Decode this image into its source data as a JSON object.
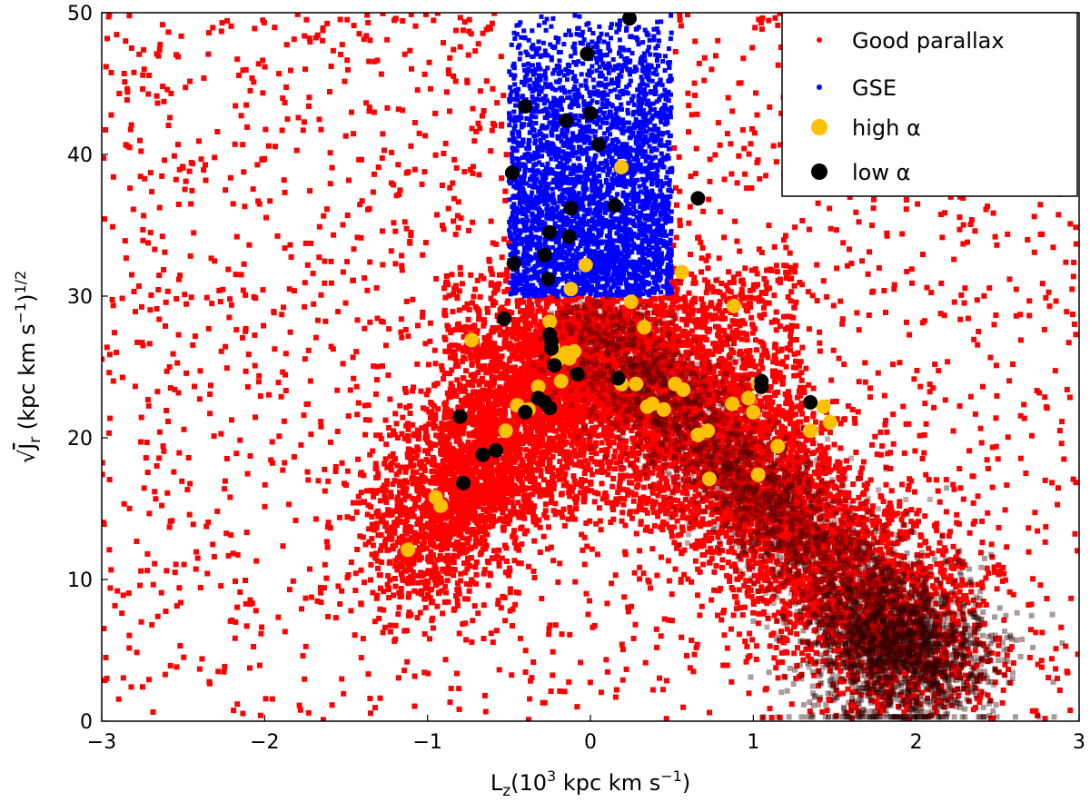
{
  "chart_data": {
    "type": "scatter",
    "xlabel_main": "L",
    "xlabel_sub": "z",
    "xlabel_rest": "(10",
    "xlabel_sup": "3",
    "xlabel_unit": " kpc km s",
    "xlabel_unit_sup": "−1",
    "xlabel_close": ")",
    "ylabel_sqrt": "√",
    "ylabel_main": "J",
    "ylabel_sub": "r",
    "ylabel_unit": " (kpc km s",
    "ylabel_unit_sup": "−1",
    "ylabel_close": ")",
    "ylabel_close_sup": "1/2",
    "xlim": [
      -3,
      3
    ],
    "ylim": [
      0,
      50
    ],
    "xticks": [
      -3,
      -2,
      -1,
      0,
      1,
      2,
      3
    ],
    "xtick_labels": [
      "−3",
      "−2",
      "−1",
      "0",
      "1",
      "2",
      "3"
    ],
    "yticks": [
      0,
      10,
      20,
      30,
      40,
      50
    ],
    "ytick_labels": [
      "0",
      "10",
      "20",
      "30",
      "40",
      "50"
    ],
    "legend_position": "top-right",
    "colors": {
      "good_parallax": "#ff0000",
      "gse": "#0000ff",
      "high_alpha": "#ffc107",
      "low_alpha": "#000000"
    },
    "series": [
      {
        "name": "Good parallax",
        "color": "#ff0000",
        "marker": "small-square",
        "description": "dense background population; arms from (-1,15) through (0,28) to (2,5)",
        "density_model": {
          "arm_left": {
            "from": [
              -1.1,
              12
            ],
            "to": [
              0.0,
              28
            ],
            "width_lz": 0.22
          },
          "arm_right": {
            "from": [
              0.0,
              28
            ],
            "to": [
              2.1,
              4
            ],
            "width_lz": 0.28
          },
          "core": {
            "center": [
              1.9,
              5
            ],
            "spread": [
              0.3,
              3
            ]
          },
          "halo": {
            "lz_range": [
              -3,
              3
            ],
            "jr_range": [
              0,
              50
            ]
          }
        }
      },
      {
        "name": "GSE",
        "color": "#0000ff",
        "marker": "small-square",
        "selection": {
          "lz_min": -0.5,
          "lz_max": 0.5,
          "jr_min": 30,
          "jr_max": 50
        }
      },
      {
        "name": "high α",
        "color": "#ffc107",
        "marker": "circle",
        "points": [
          [
            -1.12,
            12.1
          ],
          [
            -0.95,
            15.8
          ],
          [
            -0.92,
            15.2
          ],
          [
            -0.73,
            26.9
          ],
          [
            -0.52,
            20.5
          ],
          [
            -0.45,
            22.3
          ],
          [
            -0.38,
            22.0
          ],
          [
            -0.32,
            23.6
          ],
          [
            -0.25,
            28.2
          ],
          [
            -0.23,
            26.4
          ],
          [
            -0.2,
            25.5
          ],
          [
            -0.18,
            24.0
          ],
          [
            -0.15,
            26.0
          ],
          [
            -0.13,
            25.6
          ],
          [
            -0.12,
            30.5
          ],
          [
            -0.1,
            26.1
          ],
          [
            -0.03,
            32.2
          ],
          [
            0.19,
            23.8
          ],
          [
            0.19,
            39.1
          ],
          [
            0.25,
            29.6
          ],
          [
            0.28,
            23.8
          ],
          [
            0.33,
            27.8
          ],
          [
            0.35,
            22.2
          ],
          [
            0.38,
            22.4
          ],
          [
            0.45,
            22.0
          ],
          [
            0.52,
            23.8
          ],
          [
            0.57,
            23.4
          ],
          [
            0.56,
            31.7
          ],
          [
            0.66,
            20.2
          ],
          [
            0.72,
            20.5
          ],
          [
            0.73,
            17.1
          ],
          [
            0.87,
            22.4
          ],
          [
            0.88,
            29.3
          ],
          [
            0.97,
            22.8
          ],
          [
            1.0,
            21.8
          ],
          [
            1.03,
            17.4
          ],
          [
            1.03,
            23.8
          ],
          [
            1.15,
            19.4
          ],
          [
            1.35,
            20.5
          ],
          [
            1.43,
            22.2
          ],
          [
            1.47,
            21.1
          ]
        ]
      },
      {
        "name": "low α",
        "color": "#000000",
        "marker": "circle",
        "points": [
          [
            0.24,
            49.6
          ],
          [
            -0.02,
            47.1
          ],
          [
            -0.4,
            43.4
          ],
          [
            -0.15,
            42.4
          ],
          [
            0.0,
            42.9
          ],
          [
            0.05,
            40.7
          ],
          [
            -0.48,
            38.7
          ],
          [
            0.15,
            36.4
          ],
          [
            -0.12,
            36.2
          ],
          [
            0.66,
            36.9
          ],
          [
            -0.25,
            34.5
          ],
          [
            -0.13,
            34.2
          ],
          [
            -0.28,
            32.9
          ],
          [
            -0.47,
            32.3
          ],
          [
            -0.26,
            31.2
          ],
          [
            -0.53,
            28.4
          ],
          [
            -0.25,
            27.3
          ],
          [
            -0.24,
            26.8
          ],
          [
            -0.24,
            26.3
          ],
          [
            -0.22,
            25.1
          ],
          [
            -0.08,
            24.5
          ],
          [
            0.17,
            24.2
          ],
          [
            -0.32,
            22.8
          ],
          [
            -0.28,
            22.5
          ],
          [
            -0.25,
            22.1
          ],
          [
            -0.4,
            21.8
          ],
          [
            -0.8,
            21.5
          ],
          [
            -0.58,
            19.1
          ],
          [
            -0.66,
            18.8
          ],
          [
            -0.78,
            16.8
          ],
          [
            1.05,
            24.0
          ],
          [
            1.05,
            23.6
          ],
          [
            1.35,
            22.5
          ]
        ]
      }
    ]
  }
}
